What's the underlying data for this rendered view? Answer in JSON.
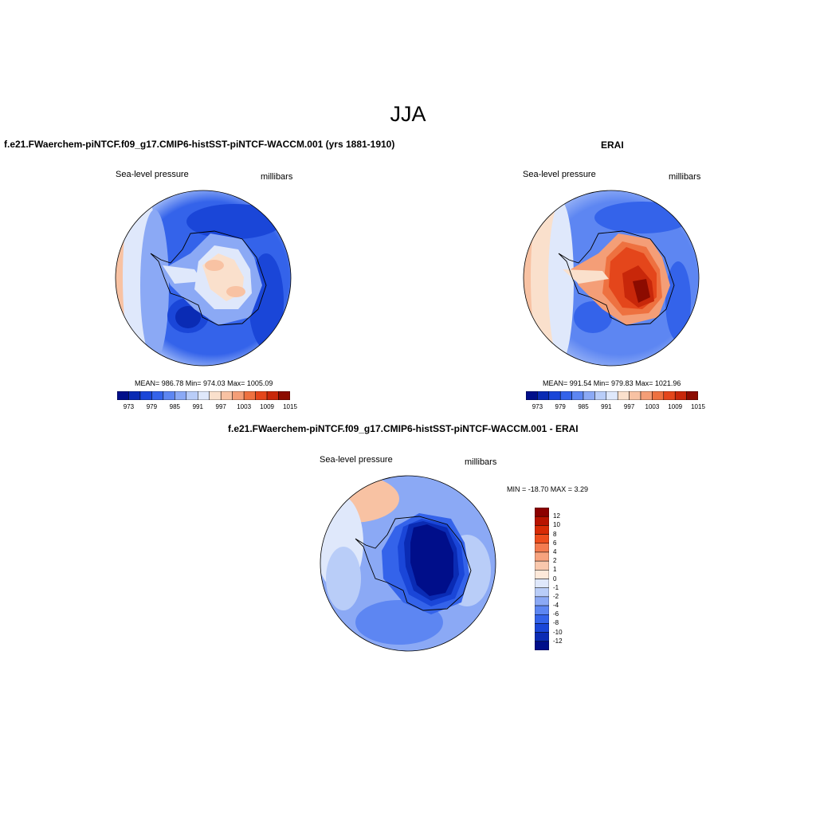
{
  "title": "JJA",
  "panels": [
    {
      "id": "model",
      "title": "f.e21.FWaerchem-piNTCF.f09_g17.CMIP6-histSST-piNTCF-WACCM.001 (yrs 1881-1910)",
      "left_label": "Sea-level pressure",
      "right_label": "millibars",
      "stats": "MEAN= 986.78  Min= 974.03  Max= 1005.09",
      "colorbar_labels": [
        "973",
        "979",
        "985",
        "991",
        "997",
        "1003",
        "1009",
        "1015"
      ]
    },
    {
      "id": "erai",
      "title": "ERAI",
      "left_label": "Sea-level pressure",
      "right_label": "millibars",
      "stats": "MEAN= 991.54  Min= 979.83  Max= 1021.96",
      "colorbar_labels": [
        "973",
        "979",
        "985",
        "991",
        "997",
        "1003",
        "1009",
        "1015"
      ]
    },
    {
      "id": "diff",
      "title": "f.e21.FWaerchem-piNTCF.f09_g17.CMIP6-histSST-piNTCF-WACCM.001 - ERAI",
      "left_label": "Sea-level pressure",
      "right_label": "millibars",
      "stats": "MIN = -18.70 MAX =   3.29",
      "colorbar_labels": [
        "12",
        "10",
        "8",
        "6",
        "4",
        "2",
        "1",
        "0",
        "-1",
        "-2",
        "-4",
        "-6",
        "-8",
        "-10",
        "-12"
      ]
    }
  ],
  "colors": {
    "abs_scale": [
      "#000e8a",
      "#0a2bb4",
      "#1a46d8",
      "#3463ea",
      "#5d86f2",
      "#8ba9f5",
      "#b9cdf8",
      "#dfe8fb",
      "#fae0cc",
      "#f8c2a3",
      "#f49e77",
      "#ee7140",
      "#e4461b",
      "#c8270a",
      "#8c0b00"
    ],
    "diff_scale": [
      "#8c0000",
      "#b81300",
      "#d82b05",
      "#ee4d1c",
      "#f47b4f",
      "#f7a37e",
      "#f9c8ad",
      "#fde9da",
      "#dfe8fb",
      "#b9cdf8",
      "#8ba9f5",
      "#5d86f2",
      "#3463ea",
      "#1a46d8",
      "#0a2bb4",
      "#000e8a"
    ]
  }
}
